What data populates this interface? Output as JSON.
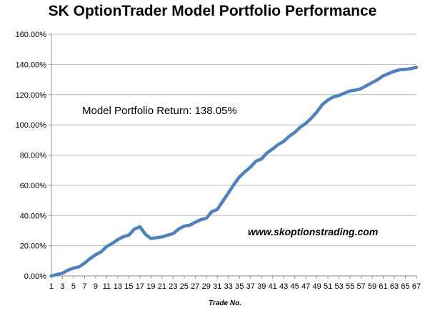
{
  "chart_data": {
    "type": "line",
    "title": "SK OptionTrader Model Portfolio Performance",
    "xlabel": "Trade No.",
    "ylabel": "",
    "ylim": [
      0,
      160
    ],
    "y_ticks": [
      "0.00%",
      "20.00%",
      "40.00%",
      "60.00%",
      "80.00%",
      "100.00%",
      "120.00%",
      "140.00%",
      "160.00%"
    ],
    "x_tick_labels": [
      "1",
      "3",
      "5",
      "7",
      "9",
      "11",
      "13",
      "15",
      "17",
      "19",
      "21",
      "23",
      "25",
      "27",
      "29",
      "31",
      "33",
      "35",
      "37",
      "39",
      "41",
      "43",
      "45",
      "47",
      "49",
      "51",
      "53",
      "55",
      "57",
      "59",
      "61",
      "63",
      "65",
      "67"
    ],
    "grid": true,
    "line_color": "#4f81bd",
    "annotations": {
      "return_text": "Model Portfolio Return: 138.05%",
      "url_text": "www.skoptionstrading.com"
    },
    "series": [
      {
        "x": [
          1,
          2,
          3,
          4,
          5,
          6,
          7,
          8,
          9,
          10,
          11,
          12,
          13,
          14,
          15,
          16,
          17,
          18,
          19,
          20,
          21,
          22,
          23,
          24,
          25,
          26,
          27,
          28,
          29,
          30,
          31,
          32,
          33,
          34,
          35,
          36,
          37,
          38,
          39,
          40,
          41,
          42,
          43,
          44,
          45,
          46,
          47,
          48,
          49,
          50,
          51,
          52,
          53,
          54,
          55,
          56,
          57,
          58,
          59,
          60,
          61,
          62,
          63,
          64,
          65,
          66,
          67
        ],
        "values": [
          0,
          1,
          1.8,
          3.8,
          5.2,
          6,
          8.5,
          11.5,
          14,
          16,
          19.5,
          21.5,
          24,
          26,
          27,
          31,
          32.5,
          27.5,
          24.8,
          25.3,
          25.8,
          27,
          28,
          31,
          33,
          33.5,
          35.5,
          37.2,
          38.2,
          42.5,
          44,
          49.5,
          55,
          60.5,
          65.5,
          69,
          72,
          76,
          77.5,
          81.5,
          84,
          87,
          89,
          92.5,
          95,
          98.5,
          101,
          104.5,
          108.5,
          113.5,
          116.5,
          118.5,
          119.5,
          121,
          122.5,
          123,
          124,
          126,
          128,
          130,
          132.5,
          134,
          135.5,
          136.5,
          136.8,
          137.2,
          138.05
        ]
      }
    ]
  }
}
